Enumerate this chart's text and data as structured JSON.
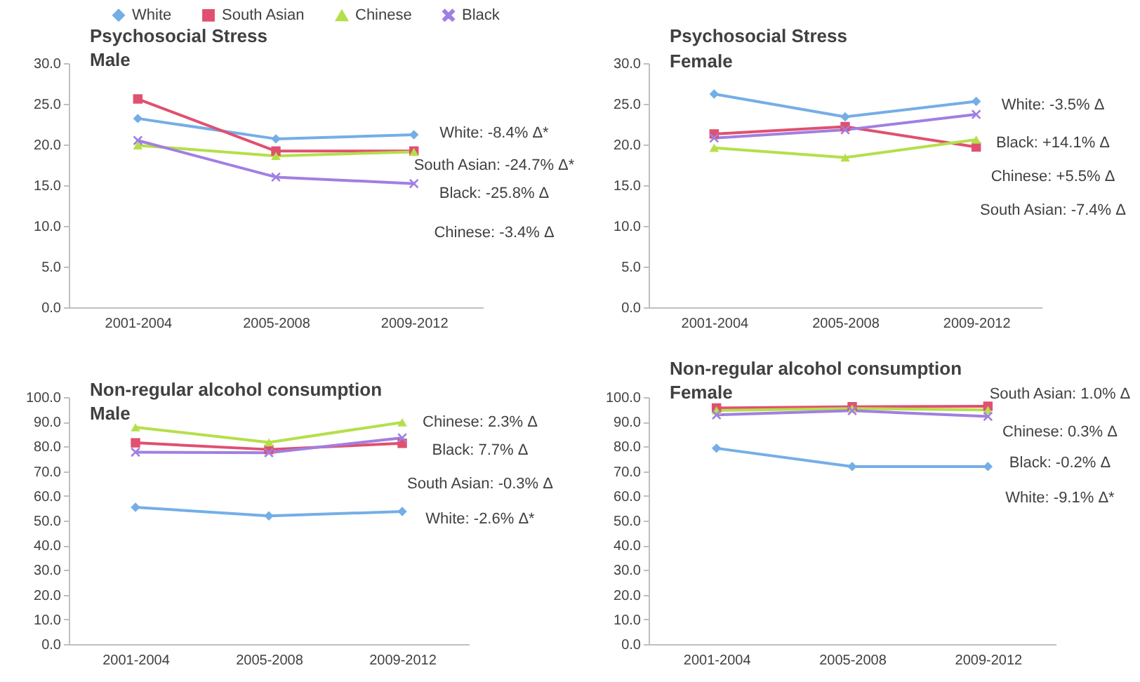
{
  "chart_data": [
    {
      "type": "line",
      "title": "Psychosocial Stress",
      "subtitle": "Male",
      "categories": [
        "2001-2004",
        "2005-2008",
        "2009-2012"
      ],
      "series": [
        {
          "name": "White",
          "color": "#74aee6",
          "marker": "diamond",
          "values": [
            23.2,
            20.7,
            21.2
          ]
        },
        {
          "name": "South Asian",
          "color": "#e0506f",
          "marker": "square",
          "values": [
            25.6,
            19.2,
            19.2
          ]
        },
        {
          "name": "Chinese",
          "color": "#b5df4a",
          "marker": "triangle",
          "values": [
            19.9,
            18.6,
            19.1
          ]
        },
        {
          "name": "Black",
          "color": "#a07fe2",
          "marker": "cross",
          "values": [
            20.5,
            16.0,
            15.2
          ]
        }
      ],
      "ylim": [
        0,
        30
      ],
      "yticks": [
        {
          "value": 0,
          "label": "0.0"
        },
        {
          "value": 5,
          "label": "5.0"
        },
        {
          "value": 10,
          "label": "10.0"
        },
        {
          "value": 15,
          "label": "15.0"
        },
        {
          "value": 20,
          "label": "20.0"
        },
        {
          "value": 25,
          "label": "25.0"
        },
        {
          "value": 30,
          "label": "30.0"
        }
      ],
      "legend": "top",
      "line_style": "solid",
      "annotations": [
        "White: -8.4% Δ*",
        "South Asian: -24.7% Δ*",
        "Black: -25.8% Δ",
        "Chinese: -3.4% Δ"
      ]
    },
    {
      "type": "line",
      "title": "Psychosocial Stress",
      "subtitle": "Female",
      "categories": [
        "2001-2004",
        "2005-2008",
        "2009-2012"
      ],
      "series": [
        {
          "name": "White",
          "color": "#74aee6",
          "marker": "diamond",
          "values": [
            26.2,
            23.4,
            25.3
          ]
        },
        {
          "name": "South Asian",
          "color": "#e0506f",
          "marker": "square",
          "values": [
            21.3,
            22.2,
            19.7
          ]
        },
        {
          "name": "Chinese",
          "color": "#b5df4a",
          "marker": "triangle",
          "values": [
            19.6,
            18.4,
            20.6
          ]
        },
        {
          "name": "Black",
          "color": "#a07fe2",
          "marker": "cross",
          "values": [
            20.8,
            21.8,
            23.7
          ]
        }
      ],
      "ylim": [
        0,
        30
      ],
      "yticks": [
        {
          "value": 0,
          "label": "0.0"
        },
        {
          "value": 5,
          "label": "5.0"
        },
        {
          "value": 10,
          "label": "10.0"
        },
        {
          "value": 15,
          "label": "15.0"
        },
        {
          "value": 20,
          "label": "20.0"
        },
        {
          "value": 25,
          "label": "25.0"
        },
        {
          "value": 30,
          "label": "30.0"
        }
      ],
      "legend": "top",
      "line_style": "solid",
      "annotations": [
        "White: -3.5% Δ",
        "Black: +14.1% Δ",
        "Chinese: +5.5% Δ",
        "South Asian: -7.4% Δ"
      ]
    },
    {
      "type": "line",
      "title": "Non-regular alcohol consumption",
      "subtitle": "Male",
      "categories": [
        "2001-2004",
        "2005-2008",
        "2009-2012"
      ],
      "series": [
        {
          "name": "White",
          "color": "#74aee6",
          "marker": "diamond",
          "values": [
            55.4,
            51.9,
            53.7
          ]
        },
        {
          "name": "South Asian",
          "color": "#e0506f",
          "marker": "square",
          "values": [
            81.5,
            78.8,
            81.3
          ]
        },
        {
          "name": "Chinese",
          "color": "#b5df4a",
          "marker": "triangle",
          "values": [
            87.8,
            81.7,
            89.8
          ]
        },
        {
          "name": "Black",
          "color": "#a07fe2",
          "marker": "cross",
          "values": [
            77.7,
            77.5,
            83.5
          ]
        }
      ],
      "ylim": [
        0,
        100
      ],
      "yticks": [
        {
          "value": 0,
          "label": "0.0"
        },
        {
          "value": 10,
          "label": "10.0"
        },
        {
          "value": 20,
          "label": "20.0"
        },
        {
          "value": 30,
          "label": "30.0"
        },
        {
          "value": 40,
          "label": "40.0"
        },
        {
          "value": 50,
          "label": "50.0"
        },
        {
          "value": 60,
          "label": "60.0"
        },
        {
          "value": 70,
          "label": "70.0"
        },
        {
          "value": 80,
          "label": "80.0"
        },
        {
          "value": 90,
          "label": "90.0"
        },
        {
          "value": 100,
          "label": "100.0"
        }
      ],
      "line_style": "solid",
      "annotations": [
        "Chinese: 2.3% Δ",
        "Black: 7.7% Δ",
        "South Asian: -0.3% Δ",
        "White: -2.6% Δ*"
      ]
    },
    {
      "type": "line",
      "title": "Non-regular alcohol consumption",
      "subtitle": "Female",
      "categories": [
        "2001-2004",
        "2005-2008",
        "2009-2012"
      ],
      "series": [
        {
          "name": "White",
          "color": "#74aee6",
          "marker": "diamond",
          "values": [
            79.3,
            71.9,
            71.9
          ]
        },
        {
          "name": "South Asian",
          "color": "#e0506f",
          "marker": "square",
          "values": [
            95.6,
            96.1,
            96.3
          ]
        },
        {
          "name": "Chinese",
          "color": "#b5df4a",
          "marker": "triangle",
          "values": [
            94.6,
            95.4,
            94.8
          ]
        },
        {
          "name": "Black",
          "color": "#a07fe2",
          "marker": "cross",
          "values": [
            92.8,
            94.5,
            92.2
          ]
        }
      ],
      "ylim": [
        0,
        100
      ],
      "yticks": [
        {
          "value": 0,
          "label": "0.0"
        },
        {
          "value": 10,
          "label": "10.0"
        },
        {
          "value": 20,
          "label": "20.0"
        },
        {
          "value": 30,
          "label": "30.0"
        },
        {
          "value": 40,
          "label": "40.0"
        },
        {
          "value": 50,
          "label": "50.0"
        },
        {
          "value": 60,
          "label": "60.0"
        },
        {
          "value": 70,
          "label": "70.0"
        },
        {
          "value": 80,
          "label": "80.0"
        },
        {
          "value": 90,
          "label": "90.0"
        },
        {
          "value": 100,
          "label": "100.0"
        }
      ],
      "line_style": "solid",
      "annotations": [
        "South Asian: 1.0% Δ",
        "Chinese: 0.3% Δ",
        "Black: -0.2% Δ",
        "White: -9.1% Δ*"
      ]
    }
  ]
}
